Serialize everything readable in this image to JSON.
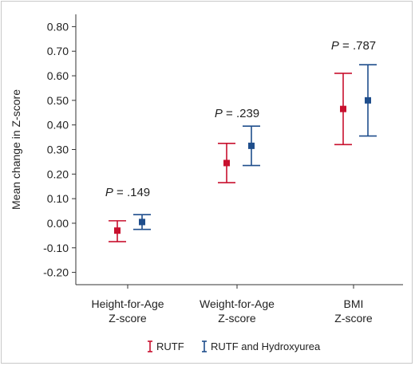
{
  "chart_data": {
    "type": "errorbar",
    "ylabel": "Mean change in Z-score",
    "ylim": [
      -0.25,
      0.85
    ],
    "yticks": [
      "0.80",
      "0.70",
      "0.60",
      "0.50",
      "0.40",
      "0.30",
      "0.20",
      "0.10",
      "0.00",
      "-0.10",
      "-0.20"
    ],
    "categories": [
      {
        "line1": "Height-for-Age",
        "line2": "Z-score",
        "p_prefix": "P",
        "p_value": " = .149"
      },
      {
        "line1": "Weight-for-Age",
        "line2": "Z-score",
        "p_prefix": "P",
        "p_value": " = .239"
      },
      {
        "line1": "BMI",
        "line2": "Z-score",
        "p_prefix": "P",
        "p_value": " = .787"
      }
    ],
    "series": [
      {
        "name": "RUTF",
        "color": "#c8102e",
        "values": [
          -0.03,
          0.245,
          0.465
        ],
        "lower": [
          -0.075,
          0.165,
          0.32
        ],
        "upper": [
          0.01,
          0.325,
          0.61
        ]
      },
      {
        "name": "RUTF and Hydroxyurea",
        "color": "#1f4e8c",
        "values": [
          0.005,
          0.315,
          0.5
        ],
        "lower": [
          -0.025,
          0.235,
          0.355
        ],
        "upper": [
          0.035,
          0.395,
          0.645
        ]
      }
    ]
  }
}
